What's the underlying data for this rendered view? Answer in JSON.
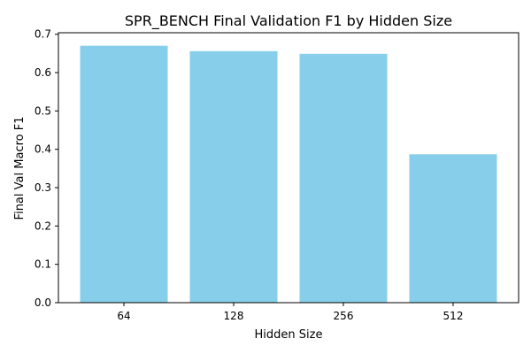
{
  "chart_data": {
    "type": "bar",
    "title": "SPR_BENCH Final Validation F1 by Hidden Size",
    "xlabel": "Hidden Size",
    "ylabel": "Final Val Macro F1",
    "categories": [
      "64",
      "128",
      "256",
      "512"
    ],
    "values": [
      0.67,
      0.656,
      0.649,
      0.387
    ],
    "ylim": [
      0,
      0.704
    ],
    "yticks": [
      "0.0",
      "0.1",
      "0.2",
      "0.3",
      "0.4",
      "0.5",
      "0.6",
      "0.7"
    ],
    "grid": false,
    "legend": "none",
    "bar_color": "#87ceeb"
  }
}
